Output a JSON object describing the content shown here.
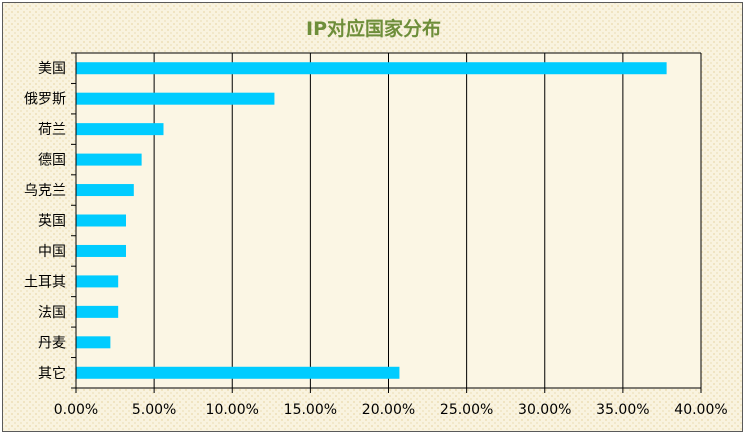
{
  "chart_data": {
    "type": "bar",
    "orientation": "horizontal",
    "title": "IP对应国家分布",
    "categories": [
      "美国",
      "俄罗斯",
      "荷兰",
      "德国",
      "乌克兰",
      "英国",
      "中国",
      "土耳其",
      "法国",
      "丹麦",
      "其它"
    ],
    "values": [
      37.8,
      12.7,
      5.6,
      4.2,
      3.7,
      3.2,
      3.2,
      2.7,
      2.7,
      2.2,
      20.7
    ],
    "xlim": [
      0,
      40
    ],
    "xticks": [
      "0.00%",
      "5.00%",
      "10.00%",
      "15.00%",
      "20.00%",
      "25.00%",
      "30.00%",
      "35.00%",
      "40.00%"
    ],
    "grid": "vertical",
    "bar_color": "#00ccff"
  }
}
